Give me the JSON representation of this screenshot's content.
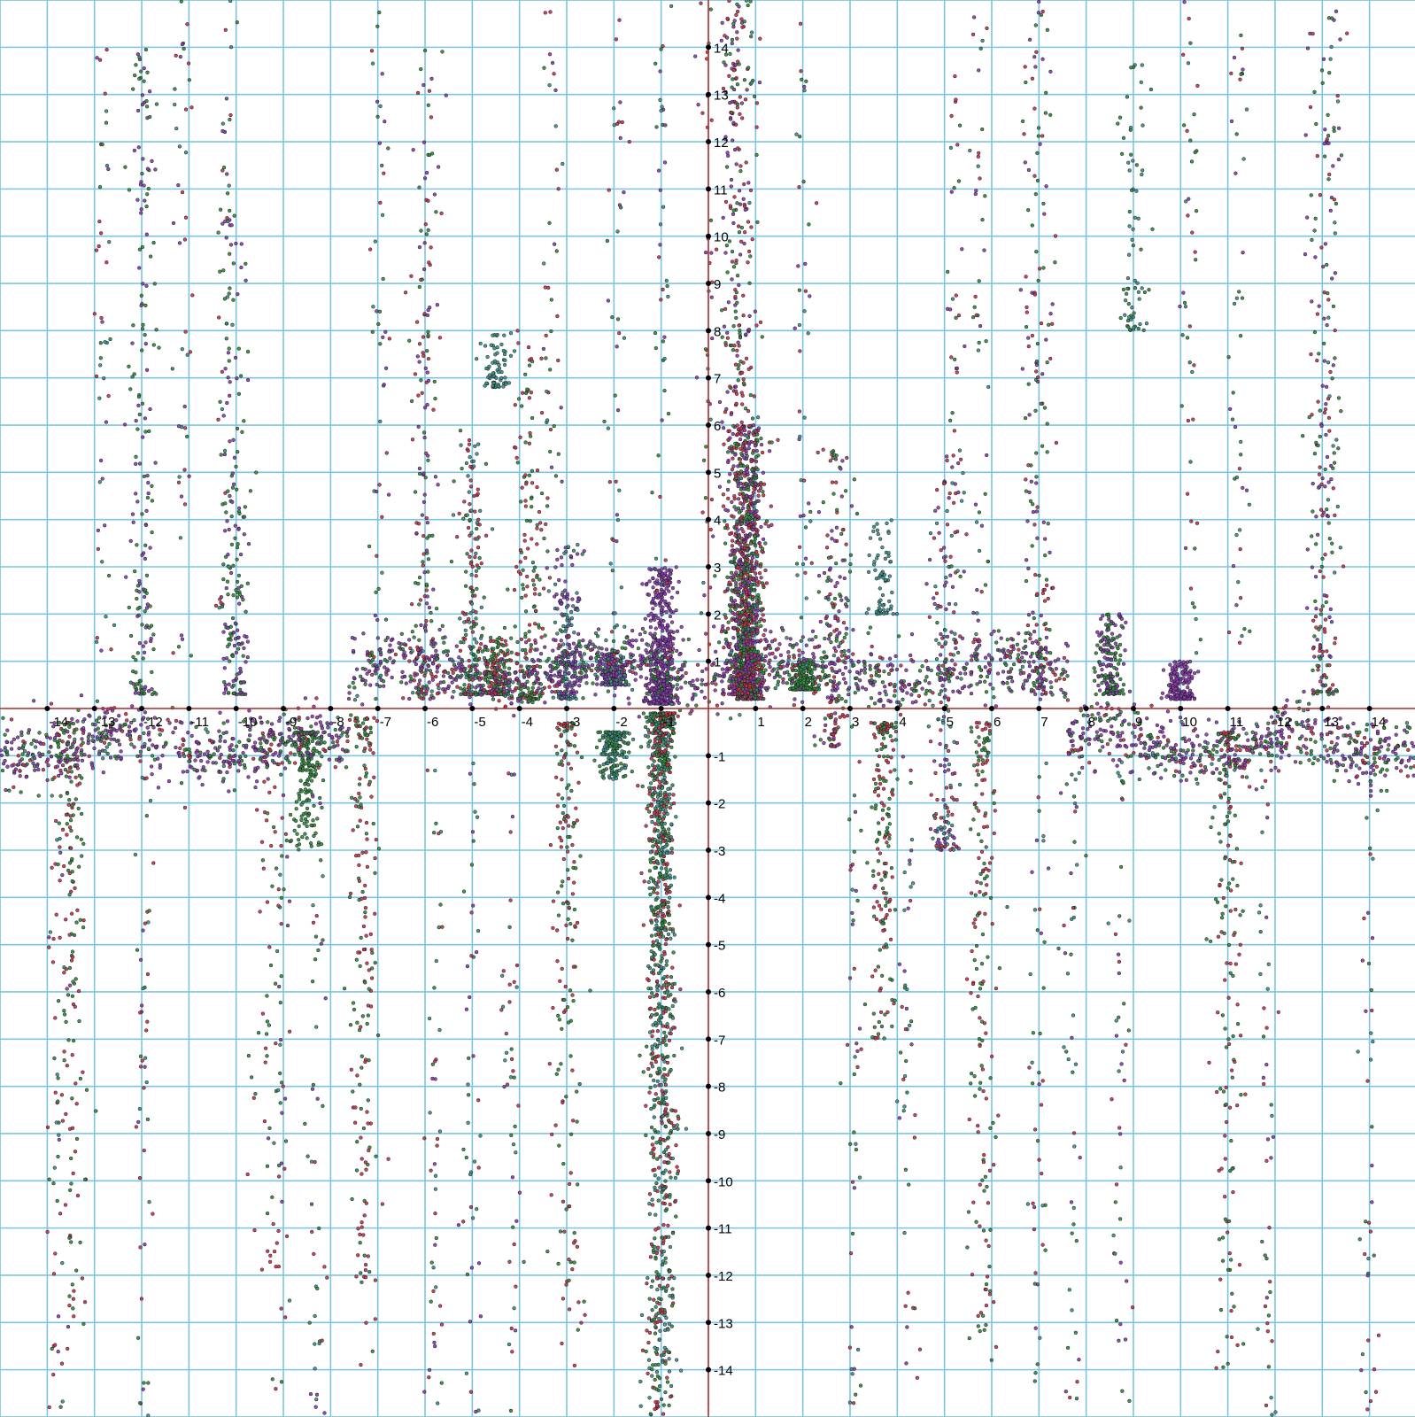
{
  "chart_data": {
    "type": "scatter",
    "title": "",
    "xlabel": "",
    "ylabel": "",
    "xlim": [
      -15,
      15
    ],
    "ylim": [
      -15,
      15
    ],
    "grid": true,
    "legend": "none",
    "x_ticks": [
      -14,
      -13,
      -12,
      -11,
      -10,
      -9,
      -8,
      -7,
      -6,
      -5,
      -4,
      -3,
      -2,
      -1,
      1,
      2,
      3,
      4,
      5,
      6,
      7,
      8,
      9,
      10,
      11,
      12,
      13,
      14
    ],
    "y_ticks": [
      14,
      13,
      12,
      11,
      10,
      9,
      8,
      7,
      6,
      5,
      4,
      3,
      2,
      1,
      -1,
      -2,
      -3,
      -4,
      -5,
      -6,
      -7,
      -8,
      -9,
      -10,
      -11,
      -12,
      -13,
      -14
    ],
    "colors": {
      "grid": "#7ec4e2",
      "axes": "#c0302a",
      "tick_dot": "#000000",
      "point_purple": "#8a3ab0",
      "point_green": "#2f8a3c",
      "point_red": "#c8324a",
      "point_teal": "#3a8f88",
      "point_outline": "#1a1a1a"
    },
    "clusters": [
      {
        "x": 0.85,
        "y": [
          0.2,
          6.0
        ],
        "density": "very high",
        "colors": [
          "purple",
          "green",
          "red"
        ]
      },
      {
        "x": 0.6,
        "y": [
          0.3,
          15.0
        ],
        "density": "high",
        "colors": [
          "green",
          "red",
          "purple"
        ]
      },
      {
        "x": -1.0,
        "y": [
          -15.0,
          -0.1
        ],
        "density": "very high",
        "colors": [
          "green",
          "red",
          "teal"
        ]
      },
      {
        "x": -1.0,
        "y": [
          0.1,
          3.0
        ],
        "density": "high",
        "colors": [
          "purple"
        ]
      },
      {
        "x": -2.0,
        "y": [
          0.5,
          1.2
        ],
        "density": "medium",
        "colors": [
          "purple",
          "teal"
        ]
      },
      {
        "x": -2.0,
        "y": [
          -1.5,
          -0.5
        ],
        "density": "medium",
        "colors": [
          "teal",
          "green"
        ]
      },
      {
        "x": -3.0,
        "y": [
          -14.0,
          -0.3
        ],
        "density": "medium",
        "colors": [
          "green",
          "red"
        ]
      },
      {
        "x": -3.0,
        "y": [
          0.2,
          3.5
        ],
        "density": "medium",
        "colors": [
          "purple",
          "teal"
        ]
      },
      {
        "x": -3.8,
        "y": [
          0.2,
          8.0
        ],
        "density": "medium",
        "colors": [
          "green",
          "red"
        ]
      },
      {
        "x": -4.5,
        "y": [
          0.3,
          1.5
        ],
        "density": "medium",
        "colors": [
          "red",
          "green"
        ]
      },
      {
        "x": -4.5,
        "y": [
          6.8,
          8.0
        ],
        "density": "low",
        "colors": [
          "teal"
        ]
      },
      {
        "x": -5.0,
        "y": [
          0.3,
          6.0
        ],
        "density": "medium",
        "colors": [
          "green",
          "red",
          "teal"
        ]
      },
      {
        "x": -6.0,
        "y": [
          0.2,
          14.0
        ],
        "density": "medium",
        "colors": [
          "red",
          "green",
          "purple"
        ]
      },
      {
        "x": -7.3,
        "y": [
          -14.0,
          -0.2
        ],
        "density": "medium",
        "colors": [
          "green",
          "red"
        ]
      },
      {
        "x": -8.5,
        "y": [
          -3.0,
          -0.5
        ],
        "density": "medium",
        "colors": [
          "green"
        ]
      },
      {
        "x": -9.3,
        "y": [
          -12.0,
          -0.5
        ],
        "density": "low",
        "colors": [
          "green",
          "red"
        ]
      },
      {
        "x": -10.0,
        "y": [
          0.3,
          11.0
        ],
        "density": "medium",
        "colors": [
          "purple",
          "green"
        ]
      },
      {
        "x": -12.0,
        "y": [
          0.3,
          14.0
        ],
        "density": "medium",
        "colors": [
          "purple",
          "green"
        ]
      },
      {
        "x": -13.5,
        "y": [
          -14.0,
          -0.3
        ],
        "density": "medium",
        "colors": [
          "green",
          "red"
        ]
      },
      {
        "x": 2.0,
        "y": [
          0.4,
          1.0
        ],
        "density": "medium",
        "colors": [
          "green"
        ]
      },
      {
        "x": 2.7,
        "y": [
          -0.8,
          5.5
        ],
        "density": "medium",
        "colors": [
          "green",
          "red",
          "purple"
        ]
      },
      {
        "x": 3.7,
        "y": [
          -7.0,
          -0.3
        ],
        "density": "medium",
        "colors": [
          "green",
          "red"
        ]
      },
      {
        "x": 3.7,
        "y": [
          2.0,
          4.0
        ],
        "density": "low",
        "colors": [
          "teal"
        ]
      },
      {
        "x": 5.0,
        "y": [
          -3.0,
          5.5
        ],
        "density": "medium",
        "colors": [
          "red",
          "teal",
          "purple"
        ]
      },
      {
        "x": 5.8,
        "y": [
          -14.0,
          -0.3
        ],
        "density": "medium",
        "colors": [
          "red",
          "green"
        ]
      },
      {
        "x": 7.0,
        "y": [
          0.3,
          15.0
        ],
        "density": "medium",
        "colors": [
          "purple",
          "red",
          "green"
        ]
      },
      {
        "x": 8.5,
        "y": [
          0.3,
          2.0
        ],
        "density": "medium",
        "colors": [
          "purple",
          "green"
        ]
      },
      {
        "x": 9.0,
        "y": [
          8.0,
          14.0
        ],
        "density": "low",
        "colors": [
          "teal",
          "green"
        ]
      },
      {
        "x": 10.0,
        "y": [
          0.2,
          1.0
        ],
        "density": "medium",
        "colors": [
          "purple"
        ]
      },
      {
        "x": 11.0,
        "y": [
          -14.0,
          -0.5
        ],
        "density": "medium",
        "colors": [
          "green",
          "red"
        ]
      },
      {
        "x": 13.0,
        "y": [
          0.3,
          15.0
        ],
        "density": "medium",
        "colors": [
          "purple",
          "green",
          "red"
        ]
      }
    ]
  }
}
